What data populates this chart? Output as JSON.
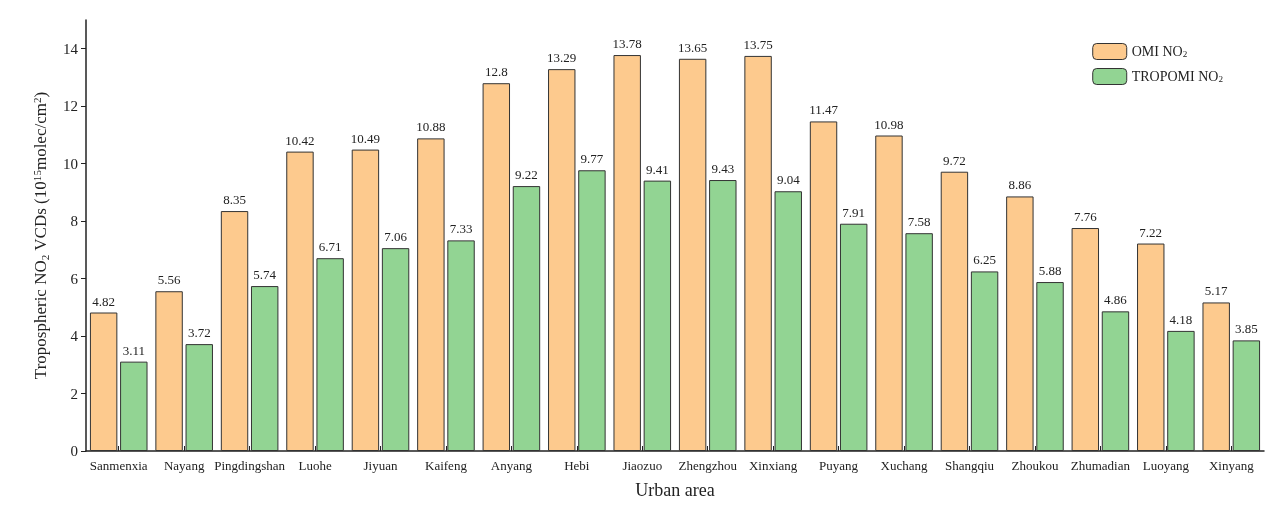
{
  "chart_data": {
    "type": "bar",
    "xlabel": "Urban area",
    "ylabel": "Tropospheric NO$_{2}$ VCDs (10$^{15}$molec/cm$^{2}$)",
    "categories": [
      "Sanmenxia",
      "Nayang",
      "Pingdingshan",
      "Luohe",
      "Jiyuan",
      "Kaifeng",
      "Anyang",
      "Hebi",
      "Jiaozuo",
      "Zhengzhou",
      "Xinxiang",
      "Puyang",
      "Xuchang",
      "Shangqiu",
      "Zhoukou",
      "Zhumadian",
      "Luoyang",
      "Xinyang"
    ],
    "series": [
      {
        "name": "OMI NO$_{2}$",
        "color": "#fdca8e",
        "values": [
          4.82,
          5.56,
          8.35,
          10.42,
          10.49,
          10.88,
          12.8,
          13.29,
          13.78,
          13.65,
          13.75,
          11.47,
          10.98,
          9.72,
          8.86,
          7.76,
          7.22,
          5.17
        ]
      },
      {
        "name": "TROPOMI NO$_{2}$",
        "color": "#92d493",
        "values": [
          3.11,
          3.72,
          5.74,
          6.71,
          7.06,
          7.33,
          9.22,
          9.77,
          9.41,
          9.43,
          9.04,
          7.91,
          7.58,
          6.25,
          5.88,
          4.86,
          4.18,
          3.85
        ]
      }
    ],
    "ylim": [
      0,
      15
    ],
    "yticks": [
      0,
      2,
      4,
      6,
      8,
      10,
      12,
      14
    ],
    "data_labels": true,
    "legend": "top right",
    "grid": false
  }
}
